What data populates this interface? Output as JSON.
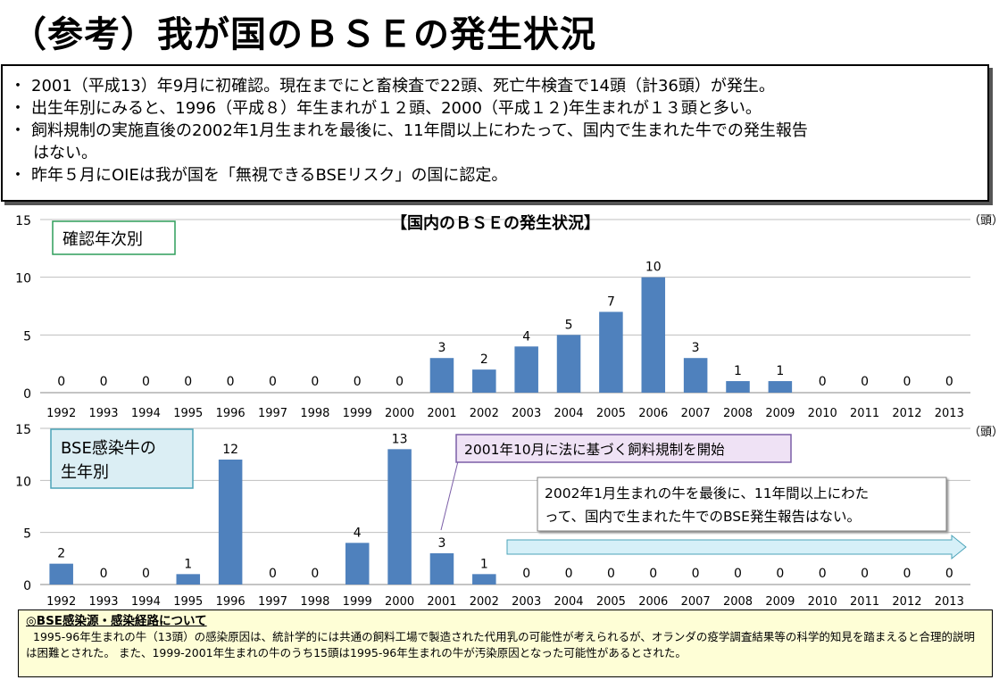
{
  "title": "（参考）我が国のＢＳＥの発生状況",
  "summary": [
    "2001（平成13）年9月に初確認。現在までにと畜検査で22頭、死亡牛検査で14頭（計36頭）が発生。",
    "出生年別にみると、1996（平成８）年生まれが１２頭、2000（平成１２)年生まれが１３頭と多い。",
    "飼料規制の実施直後の2002年1月生まれを最後に、11年間以上にわたって、国内で生まれた牛での発生報告",
    "はない。",
    "昨年５月にOIEは我が国を「無視できるBSEリスク」の国に認定。"
  ],
  "chart_title": "【国内のＢＳＥの発生状況】",
  "unit_label": "（頭）",
  "callouts": {
    "confirmed_label": "確認年次別",
    "birth_label_line1": "BSE感染牛の",
    "birth_label_line2": "生年別",
    "regulation_note": "2001年10月に法に基づく飼料規制を開始",
    "no_report_line1": "2002年1月生まれの牛を最後に、11年間以上にわた",
    "no_report_line2": "って、国内で生まれた牛でのBSE発生報告はない。"
  },
  "colors": {
    "bar": "#4f81bd",
    "grid": "#bfbfbf",
    "green_border": "#2e9e5a",
    "note_fill": "#efe2f5",
    "arrow_fill": "#d6f0f8"
  },
  "bottom_note": {
    "heading": "◎BSE感染源・感染経路について",
    "text": "1995-96年生まれの牛（13頭）の感染原因は、統計学的には共通の飼料工場で製造された代用乳の可能性が考えられるが、オランダの疫学調査結果等の科学的知見を踏まえると合理的説明は困難とされた。 また、1999-2001年生まれの牛のうち15頭は1995-96年生まれの牛が汚染原因となった可能性があるとされた。"
  },
  "chart_data": [
    {
      "type": "bar",
      "name": "確認年次別",
      "categories": [
        "1992",
        "1993",
        "1994",
        "1995",
        "1996",
        "1997",
        "1998",
        "1999",
        "2000",
        "2001",
        "2002",
        "2003",
        "2004",
        "2005",
        "2006",
        "2007",
        "2008",
        "2009",
        "2010",
        "2011",
        "2012",
        "2013"
      ],
      "values": [
        0,
        0,
        0,
        0,
        0,
        0,
        0,
        0,
        0,
        3,
        2,
        4,
        5,
        7,
        10,
        3,
        1,
        1,
        0,
        0,
        0,
        0
      ],
      "ylim": [
        0,
        15
      ],
      "yticks": [
        0,
        5,
        10,
        15
      ],
      "grid": true
    },
    {
      "type": "bar",
      "name": "BSE感染牛の生年別",
      "categories": [
        "1992",
        "1993",
        "1994",
        "1995",
        "1996",
        "1997",
        "1998",
        "1999",
        "2000",
        "2001",
        "2002",
        "2003",
        "2004",
        "2005",
        "2006",
        "2007",
        "2008",
        "2009",
        "2010",
        "2011",
        "2012",
        "2013"
      ],
      "values": [
        2,
        0,
        0,
        1,
        12,
        0,
        0,
        4,
        13,
        3,
        1,
        0,
        0,
        0,
        0,
        0,
        0,
        0,
        0,
        0,
        0,
        0
      ],
      "ylim": [
        0,
        15
      ],
      "yticks": [
        0,
        5,
        10,
        15
      ],
      "grid": true
    }
  ]
}
